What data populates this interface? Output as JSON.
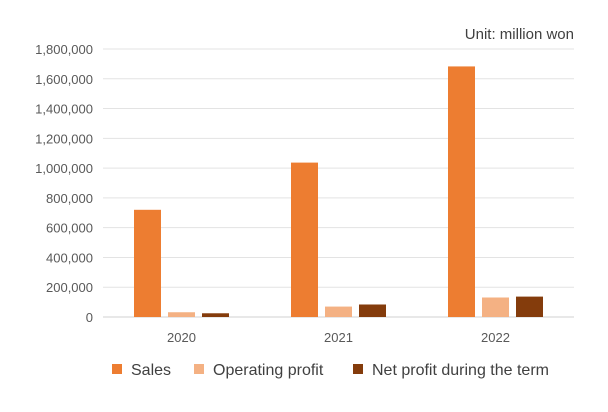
{
  "chart_data": {
    "type": "bar",
    "unit_label": "Unit: million won",
    "categories": [
      "2020",
      "2021",
      "2022"
    ],
    "series": [
      {
        "name": "Sales",
        "color": "#ED7D31",
        "values": [
          720000,
          1037000,
          1683000
        ]
      },
      {
        "name": "Operating profit",
        "color": "#F4B183",
        "values": [
          32000,
          70000,
          131000
        ]
      },
      {
        "name": "Net profit during the term",
        "color": "#843C0C",
        "values": [
          25000,
          84000,
          137000
        ]
      }
    ],
    "y_ticks": [
      "0",
      "200,000",
      "400,000",
      "600,000",
      "800,000",
      "1,000,000",
      "1,200,000",
      "1,400,000",
      "1,600,000",
      "1,800,000"
    ],
    "ylim": [
      0,
      1800000
    ],
    "grid": true,
    "legend_position": "bottom"
  }
}
